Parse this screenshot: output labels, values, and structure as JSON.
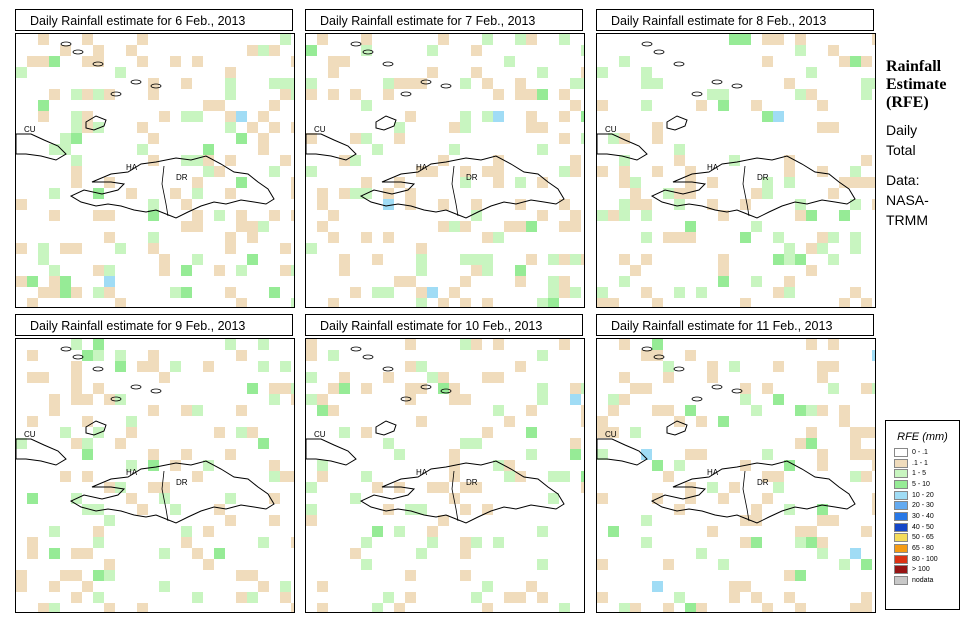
{
  "panels": [
    {
      "title": "Daily Rainfall estimate for  6 Feb., 2013"
    },
    {
      "title": "Daily Rainfall estimate for  7 Feb., 2013"
    },
    {
      "title": "Daily Rainfall estimate for  8 Feb., 2013"
    },
    {
      "title": "Daily Rainfall estimate for  9 Feb., 2013"
    },
    {
      "title": "Daily Rainfall estimate for  10 Feb., 2013"
    },
    {
      "title": "Daily Rainfall estimate for  11 Feb., 2013"
    }
  ],
  "map_labels": {
    "cu": "CU",
    "ha": "HA",
    "dr": "DR"
  },
  "side": {
    "title1": "Rainfall",
    "title2": "Estimate",
    "title3": "(RFE)",
    "line1": "Daily",
    "line2": "Total",
    "line3": "Data:",
    "line4": "NASA-",
    "line5": "TRMM"
  },
  "legend": {
    "title": "RFE (mm)",
    "items": [
      {
        "label": "0 - .1",
        "color": "#ffffff"
      },
      {
        "label": ".1 - 1",
        "color": "#f0dcbc"
      },
      {
        "label": "1 - 5",
        "color": "#c8f5c0"
      },
      {
        "label": "5 - 10",
        "color": "#96eb96"
      },
      {
        "label": "10 - 20",
        "color": "#a0dcf5"
      },
      {
        "label": "20 - 30",
        "color": "#64aaf0"
      },
      {
        "label": "30 - 40",
        "color": "#2878e6"
      },
      {
        "label": "40 - 50",
        "color": "#1446c8"
      },
      {
        "label": "50 - 65",
        "color": "#f5dc5a"
      },
      {
        "label": "65 - 80",
        "color": "#f59b14"
      },
      {
        "label": "80 - 100",
        "color": "#dc3214"
      },
      {
        "label": "> 100",
        "color": "#961414"
      },
      {
        "label": "nodata",
        "color": "#c8c8c8"
      }
    ]
  }
}
